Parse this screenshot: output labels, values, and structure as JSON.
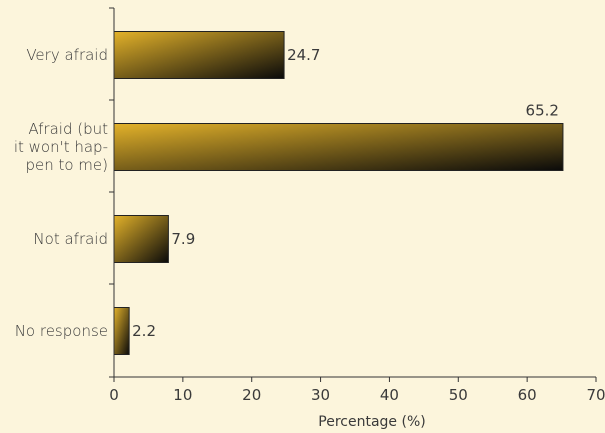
{
  "chart_data": {
    "type": "bar",
    "orientation": "horizontal",
    "categories": [
      [
        "Very afraid"
      ],
      [
        "Afraid (but",
        "it won't hap-",
        "pen to me)"
      ],
      [
        "Not afraid"
      ],
      [
        "No response"
      ]
    ],
    "values": [
      24.7,
      65.2,
      7.9,
      2.2
    ],
    "value_labels": [
      "24.7",
      "65.2",
      "7.9",
      "2.2"
    ],
    "xlabel": "Percentage (%)",
    "ylabel": "",
    "xlim": [
      0,
      70
    ],
    "xticks": [
      0,
      10,
      20,
      30,
      40,
      50,
      60,
      70
    ],
    "grid": false,
    "colors": {
      "bar_light": "#e3b22a",
      "bar_dark": "#0a0a0a",
      "background": "#fcf5dc",
      "axis": "#333333"
    }
  }
}
